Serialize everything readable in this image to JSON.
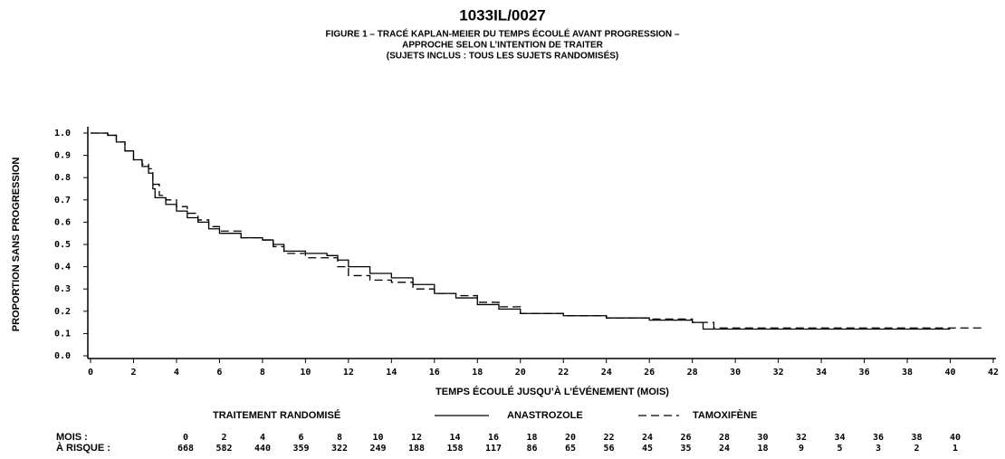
{
  "chart_data": {
    "type": "step-line",
    "title": "1033IL/0027",
    "subtitle": [
      "FIGURE 1 – TRACÉ KAPLAN-MEIER DU TEMPS ÉCOULÉ AVANT PROGRESSION –",
      "APPROCHE SELON L’INTENTION DE TRAITER",
      "(SUJETS INCLUS : TOUS LES SUJETS RANDOMISÉS)"
    ],
    "xlabel": "TEMPS ÉCOULÉ JUSQU’À L’ÉVÉNEMENT (MOIS)",
    "ylabel": "PROPORTION SANS PROGRESSION",
    "xlim": [
      0,
      42
    ],
    "ylim": [
      0,
      1
    ],
    "xticks": [
      0,
      2,
      4,
      6,
      8,
      10,
      12,
      14,
      16,
      18,
      20,
      22,
      24,
      26,
      28,
      30,
      32,
      34,
      36,
      38,
      40,
      42
    ],
    "yticks": [
      {
        "value": 0,
        "label": "0.0"
      },
      0.1,
      0.2,
      0.3,
      0.4,
      0.5,
      0.6,
      0.7,
      0.8,
      0.9,
      {
        "value": 1,
        "label": "1.0"
      }
    ],
    "legend_title": "TRAITEMENT RANDOMISÉ",
    "series": [
      {
        "name": "ANASTROZOLE",
        "color": "#000000",
        "dash": "solid",
        "x": [
          0,
          0.8,
          1.2,
          1.6,
          2.0,
          2.4,
          2.7,
          2.9,
          3.0,
          3.5,
          4,
          4.5,
          5,
          5.5,
          6,
          7,
          8,
          8.5,
          9,
          10,
          11,
          11.5,
          12,
          13,
          14,
          15,
          16,
          17,
          18,
          19,
          20,
          22,
          24,
          26,
          28,
          28.5,
          30,
          35,
          40
        ],
        "values": [
          1.0,
          0.99,
          0.96,
          0.92,
          0.88,
          0.85,
          0.82,
          0.75,
          0.71,
          0.68,
          0.65,
          0.62,
          0.6,
          0.57,
          0.55,
          0.53,
          0.52,
          0.5,
          0.47,
          0.46,
          0.45,
          0.43,
          0.4,
          0.37,
          0.35,
          0.32,
          0.28,
          0.26,
          0.23,
          0.21,
          0.19,
          0.18,
          0.17,
          0.16,
          0.15,
          0.12,
          0.12,
          0.12,
          0.12
        ]
      },
      {
        "name": "TAMOXIFÈNE",
        "color": "#000000",
        "dash": "dashed",
        "x": [
          0,
          0.8,
          1.2,
          1.6,
          2.0,
          2.4,
          2.7,
          2.9,
          3.2,
          3.5,
          4,
          4.5,
          5,
          5.5,
          6,
          7,
          8,
          8.5,
          9,
          10,
          11,
          11.5,
          12,
          13,
          14,
          15,
          16,
          17,
          18,
          19,
          20,
          22,
          24,
          26,
          28,
          29,
          35,
          41.5
        ],
        "values": [
          1.0,
          0.99,
          0.96,
          0.92,
          0.88,
          0.86,
          0.84,
          0.77,
          0.72,
          0.7,
          0.67,
          0.64,
          0.61,
          0.58,
          0.56,
          0.53,
          0.52,
          0.49,
          0.46,
          0.44,
          0.44,
          0.4,
          0.36,
          0.34,
          0.33,
          0.3,
          0.28,
          0.27,
          0.24,
          0.22,
          0.19,
          0.18,
          0.17,
          0.165,
          0.15,
          0.125,
          0.125,
          0.13
        ]
      }
    ],
    "at_risk": {
      "months_label": "MOIS :",
      "counts_label": "À RISQUE :",
      "months": [
        0,
        2,
        4,
        6,
        8,
        10,
        12,
        14,
        16,
        18,
        20,
        22,
        24,
        26,
        28,
        30,
        32,
        34,
        36,
        38,
        40
      ],
      "counts": [
        668,
        582,
        440,
        359,
        322,
        249,
        188,
        158,
        117,
        86,
        65,
        56,
        45,
        35,
        24,
        18,
        9,
        5,
        3,
        2,
        1
      ]
    }
  }
}
